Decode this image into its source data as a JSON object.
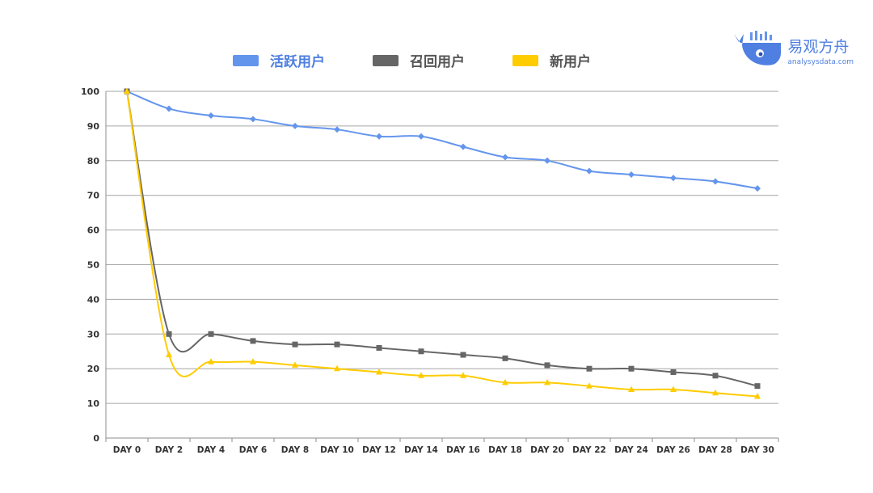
{
  "brand": {
    "name": "易观方舟",
    "domain": "analysysdata.com"
  },
  "chart_data": {
    "type": "line",
    "categories": [
      "DAY 0",
      "DAY 2",
      "DAY 4",
      "DAY 6",
      "DAY 8",
      "DAY 10",
      "DAY 12",
      "DAY 14",
      "DAY 16",
      "DAY 18",
      "DAY 20",
      "DAY 22",
      "DAY 24",
      "DAY 26",
      "DAY 28",
      "DAY 30"
    ],
    "ylim": [
      0,
      100
    ],
    "yticks": [
      0,
      10,
      20,
      30,
      40,
      50,
      60,
      70,
      80,
      90,
      100
    ],
    "grid": true,
    "legend_position": "top",
    "series": [
      {
        "name": "活跃用户",
        "color": "#6495ed",
        "marker": "diamond",
        "values": [
          100,
          95,
          93,
          92,
          90,
          89,
          87,
          87,
          84,
          81,
          80,
          77,
          76,
          75,
          74,
          72
        ]
      },
      {
        "name": "召回用户",
        "color": "#666666",
        "marker": "square",
        "values": [
          100,
          30,
          30,
          28,
          27,
          27,
          26,
          25,
          24,
          23,
          21,
          20,
          20,
          19,
          18,
          15
        ]
      },
      {
        "name": "新用户",
        "color": "#ffcc00",
        "marker": "triangle",
        "values": [
          100,
          24,
          22,
          22,
          21,
          20,
          19,
          18,
          18,
          16,
          16,
          15,
          14,
          14,
          13,
          12
        ]
      }
    ]
  }
}
